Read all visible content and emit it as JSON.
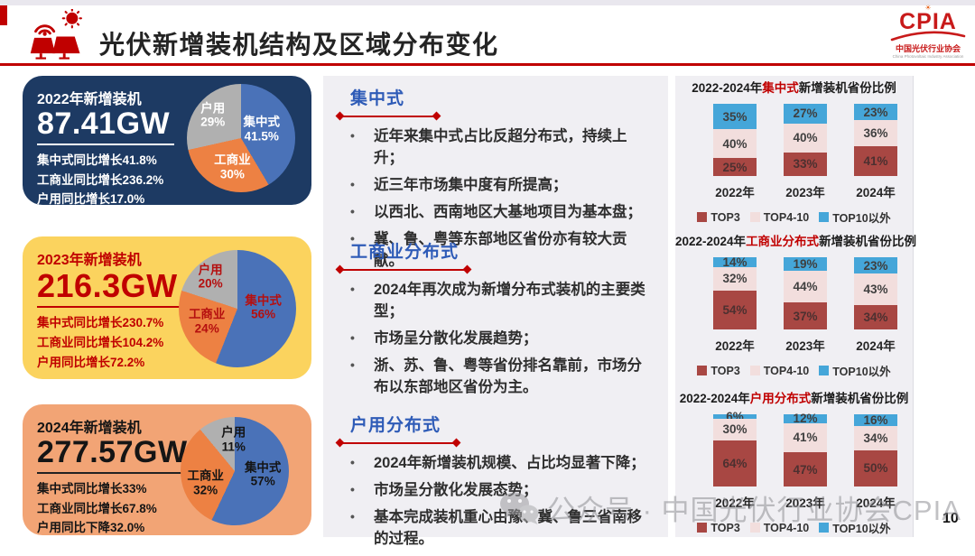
{
  "header": {
    "title": "光伏新增装机结构及区域分布变化",
    "logo": {
      "abbr": "CPIA",
      "org": "中国光伏行业协会",
      "org_en": "China Photovoltaic Industry Association"
    }
  },
  "cards": [
    {
      "title": "2022年新增装机",
      "value": "87.41GW",
      "stats": [
        "集中式同比增长41.8%",
        "工商业同比增长236.2%",
        "户用同比增长17.0%"
      ]
    },
    {
      "title": "2023年新增装机",
      "value": "216.3GW",
      "stats": [
        "集中式同比增长230.7%",
        "工商业同比增长104.2%",
        "户用同比增长72.2%"
      ]
    },
    {
      "title": "2024年新增装机",
      "value": "277.57GW",
      "stats": [
        "集中式同比增长33%",
        "工商业同比增长67.8%",
        "户用同比下降32.0%"
      ]
    }
  ],
  "sections": [
    {
      "heading": "集中式",
      "bullets": [
        "近年来集中式占比反超分布式，持续上升；",
        "近三年市场集中度有所提高；",
        "以西北、西南地区大基地项目为基本盘；",
        "冀、鲁、粤等东部地区省份亦有较大贡献。"
      ]
    },
    {
      "heading": "工商业分布式",
      "bullets": [
        "2024年再次成为新增分布式装机的主要类型；",
        "市场呈分散化发展趋势；",
        "浙、苏、鲁、粤等省份排名靠前，市场分布以东部地区省份为主。"
      ]
    },
    {
      "heading": "户用分布式",
      "bullets": [
        "2024年新增装机规模、占比均显著下降；",
        "市场呈分散化发展态势；",
        "基本完成装机重心由豫、冀、鲁三省南移的过程。"
      ]
    }
  ],
  "chart_data": [
    {
      "type": "pie",
      "title": "2022年新增装机结构",
      "labels": [
        "集中式",
        "工商业",
        "户用"
      ],
      "values": [
        41.5,
        30,
        29
      ],
      "values_display": [
        "41.5%",
        "30%",
        "29%"
      ],
      "slice_colors": [
        "#4a72b8",
        "#ed8143",
        "#b0b0b0"
      ]
    },
    {
      "type": "pie",
      "title": "2023年新增装机结构",
      "labels": [
        "集中式",
        "工商业",
        "户用"
      ],
      "values": [
        56,
        24,
        20
      ],
      "values_display": [
        "56%",
        "24%",
        "20%"
      ],
      "slice_colors": [
        "#4a72b8",
        "#ed8143",
        "#b0b0b0"
      ]
    },
    {
      "type": "pie",
      "title": "2024年新增装机结构",
      "labels": [
        "集中式",
        "工商业",
        "户用"
      ],
      "values": [
        57,
        32,
        11
      ],
      "values_display": [
        "57%",
        "32%",
        "11%"
      ],
      "slice_colors": [
        "#4a72b8",
        "#ed8143",
        "#b0b0b0"
      ]
    },
    {
      "type": "bar",
      "stacked": true,
      "legend_position": "bottom",
      "ylim": [
        0,
        100
      ],
      "title_prefix": "2022-2024年",
      "title_highlight": "集中式",
      "title_suffix": "新增装机省份比例",
      "categories": [
        "2022年",
        "2023年",
        "2024年"
      ],
      "series": [
        {
          "name": "TOP3",
          "color": "#a84743",
          "values": [
            25,
            33,
            41
          ]
        },
        {
          "name": "TOP4-10",
          "color": "#f2dedd",
          "values": [
            40,
            40,
            36
          ]
        },
        {
          "name": "TOP10以外",
          "color": "#45a6d9",
          "values": [
            35,
            27,
            23
          ]
        }
      ]
    },
    {
      "type": "bar",
      "stacked": true,
      "legend_position": "bottom",
      "ylim": [
        0,
        100
      ],
      "title_prefix": "2022-2024年",
      "title_highlight": "工商业分布式",
      "title_suffix": "新增装机省份比例",
      "categories": [
        "2022年",
        "2023年",
        "2024年"
      ],
      "series": [
        {
          "name": "TOP3",
          "color": "#a84743",
          "values": [
            54,
            37,
            34
          ]
        },
        {
          "name": "TOP4-10",
          "color": "#f2dedd",
          "values": [
            32,
            44,
            43
          ]
        },
        {
          "name": "TOP10以外",
          "color": "#45a6d9",
          "values": [
            14,
            19,
            23
          ]
        }
      ]
    },
    {
      "type": "bar",
      "stacked": true,
      "legend_position": "bottom",
      "ylim": [
        0,
        100
      ],
      "title_prefix": "2022-2024年",
      "title_highlight": "户用分布式",
      "title_suffix": "新增装机省份比例",
      "categories": [
        "2022年",
        "2023年",
        "2024年"
      ],
      "series": [
        {
          "name": "TOP3",
          "color": "#a84743",
          "values": [
            64,
            47,
            50
          ]
        },
        {
          "name": "TOP4-10",
          "color": "#f2dedd",
          "values": [
            30,
            41,
            34
          ]
        },
        {
          "name": "TOP10以外",
          "color": "#45a6d9",
          "values": [
            6,
            12,
            16
          ]
        }
      ]
    }
  ],
  "footer": {
    "watermark": "公众号 · 中国光伏行业协会CPIA",
    "page_number": "10"
  },
  "colors": {
    "accent_red": "#c00000",
    "heading_blue": "#2e5bb7",
    "panel_bg": "#f0eff3",
    "card_navy": "#1d3a63",
    "card_yellow": "#fbd35e",
    "card_orange": "#f2a475"
  }
}
